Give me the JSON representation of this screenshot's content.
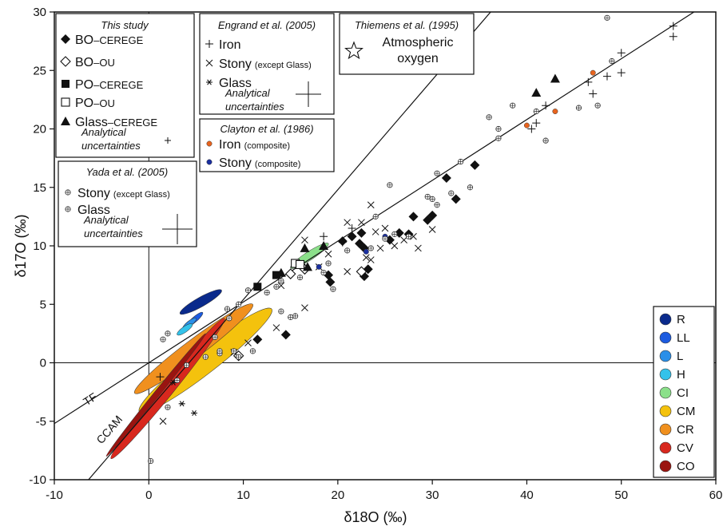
{
  "chart_data": {
    "type": "scatter",
    "xlabel": "δ18O (‰)",
    "ylabel": "δ17O (‰)",
    "xlim": [
      -10,
      60
    ],
    "ylim": [
      -10,
      30
    ],
    "xticks": [
      -10,
      0,
      10,
      20,
      30,
      40,
      50,
      60
    ],
    "yticks": [
      -10,
      -5,
      0,
      5,
      10,
      15,
      20,
      25,
      30
    ],
    "grid": false,
    "reference_lines": [
      {
        "name": "TF",
        "slope": 0.52,
        "intercept": 0,
        "label": "TF",
        "label_at": [
          -6.6,
          -3.7
        ]
      },
      {
        "name": "CCAM",
        "slope": 0.94,
        "intercept": -4,
        "label": "CCAM",
        "label_at": [
          -5.0,
          -7.0
        ]
      }
    ],
    "legend_boxes": [
      {
        "title": "This study",
        "entries": [
          {
            "marker": "filled-diamond",
            "label": "BO",
            "suffix": "–CEREGE"
          },
          {
            "marker": "open-diamond",
            "label": "BO",
            "suffix": "–OU"
          },
          {
            "marker": "filled-square",
            "label": "PO",
            "suffix": "–CEREGE"
          },
          {
            "marker": "open-square",
            "label": "PO",
            "suffix": "–OU"
          },
          {
            "marker": "filled-triangle",
            "label": "Glass",
            "suffix": "–CEREGE"
          }
        ],
        "uncertainty_label": [
          "Analytical",
          "uncertainties"
        ]
      },
      {
        "title": "Engrand et al. (2005)",
        "entries": [
          {
            "marker": "plus",
            "label": "Iron",
            "suffix": ""
          },
          {
            "marker": "cross",
            "label": "Stony",
            "suffix": "(except Glass)"
          },
          {
            "marker": "asterisk",
            "label": "Glass",
            "suffix": ""
          }
        ],
        "uncertainty_label": [
          "Analytical",
          "uncertainties"
        ]
      },
      {
        "title": "Thiemens et al. (1995)",
        "entries": [
          {
            "marker": "open-star",
            "label": "Atmospheric",
            "label2": "oxygen"
          }
        ]
      },
      {
        "title": "Clayton et al. (1986)",
        "entries": [
          {
            "marker": "orange-dot",
            "label": "Iron",
            "suffix": "(composite)"
          },
          {
            "marker": "blue-dot",
            "label": "Stony",
            "suffix": "(composite)"
          }
        ]
      },
      {
        "title": "Yada et al. (2005)",
        "entries": [
          {
            "marker": "circle-plus",
            "label": "Stony",
            "suffix": "(except Glass)"
          },
          {
            "marker": "circle-plus",
            "label": "Glass",
            "suffix": ""
          }
        ],
        "uncertainty_label": [
          "Analytical",
          "uncertainties"
        ]
      }
    ],
    "chondrite_legend": [
      {
        "label": "R",
        "color": "#0a2a8c"
      },
      {
        "label": "LL",
        "color": "#1c5be0"
      },
      {
        "label": "L",
        "color": "#2a8fe8"
      },
      {
        "label": "H",
        "color": "#33c2ea"
      },
      {
        "label": "CI",
        "color": "#8be08a"
      },
      {
        "label": "CM",
        "color": "#f4c20d"
      },
      {
        "label": "CR",
        "color": "#f0901e"
      },
      {
        "label": "CV",
        "color": "#d8281e"
      },
      {
        "label": "CO",
        "color": "#9a1410"
      }
    ],
    "ellipses": [
      {
        "name": "CM",
        "color": "#f4c20d",
        "x1": -1.0,
        "y1": -4.2,
        "x2": 13.0,
        "y2": 4.6,
        "w": 2.6
      },
      {
        "name": "CR",
        "color": "#f0901e",
        "x1": -1.5,
        "y1": -2.6,
        "x2": 11.0,
        "y2": 5.0,
        "w": 1.9
      },
      {
        "name": "CV",
        "color": "#d8281e",
        "x1": -4.0,
        "y1": -8.2,
        "x2": 8.0,
        "y2": 3.8,
        "w": 1.4
      },
      {
        "name": "CO",
        "color": "#9a1410",
        "x1": -4.5,
        "y1": -8.0,
        "x2": 6.0,
        "y2": 2.5,
        "w": 0.6
      },
      {
        "name": "R",
        "color": "#0a2a8c",
        "x1": 3.3,
        "y1": 4.2,
        "x2": 7.7,
        "y2": 6.2,
        "w": 1.0
      },
      {
        "name": "LL",
        "color": "#1c5be0",
        "x1": 4.0,
        "y1": 3.1,
        "x2": 5.7,
        "y2": 4.3,
        "w": 0.55
      },
      {
        "name": "L",
        "color": "#2a8fe8",
        "x1": 3.6,
        "y1": 2.9,
        "x2": 5.0,
        "y2": 3.8,
        "w": 0.55
      },
      {
        "name": "H",
        "color": "#33c2ea",
        "x1": 3.0,
        "y1": 2.4,
        "x2": 4.6,
        "y2": 3.3,
        "w": 0.6
      },
      {
        "name": "CI",
        "color": "#8be08a",
        "x1": 15.0,
        "y1": 8.1,
        "x2": 19.0,
        "y2": 10.2,
        "w": 0.9
      }
    ],
    "series": [
      {
        "name": "BO-CEREGE",
        "marker": "filled-diamond",
        "points": [
          [
            32.5,
            14.0
          ],
          [
            34.5,
            16.9
          ],
          [
            31.5,
            15.8
          ],
          [
            30.0,
            12.6
          ],
          [
            29.5,
            12.2
          ],
          [
            28.0,
            12.5
          ],
          [
            27.5,
            11.0
          ],
          [
            26.5,
            11.1
          ],
          [
            25.5,
            10.5
          ],
          [
            22.5,
            11.1
          ],
          [
            22.3,
            10.2
          ],
          [
            21.5,
            10.8
          ],
          [
            20.5,
            10.4
          ],
          [
            22.8,
            9.8
          ],
          [
            23.2,
            8.0
          ],
          [
            22.8,
            7.4
          ],
          [
            19.2,
            6.9
          ],
          [
            19.0,
            7.5
          ],
          [
            14.5,
            2.4
          ],
          [
            11.5,
            2.0
          ]
        ]
      },
      {
        "name": "BO-OU",
        "marker": "open-diamond",
        "points": [
          [
            16.5,
            8.0
          ],
          [
            22.5,
            7.8
          ],
          [
            9.5,
            0.6
          ],
          [
            15.0,
            7.6
          ]
        ]
      },
      {
        "name": "PO-CEREGE",
        "marker": "filled-square",
        "points": [
          [
            11.5,
            6.5
          ],
          [
            13.5,
            7.5
          ]
        ]
      },
      {
        "name": "PO-OU",
        "marker": "open-square",
        "points": [
          [
            15.5,
            8.5
          ],
          [
            16.0,
            8.4
          ]
        ]
      },
      {
        "name": "Glass-CEREGE",
        "marker": "filled-triangle",
        "points": [
          [
            43.0,
            24.3
          ],
          [
            41.0,
            23.1
          ],
          [
            18.5,
            10.0
          ],
          [
            16.5,
            9.8
          ],
          [
            14.0,
            7.7
          ],
          [
            16.8,
            8.2
          ]
        ]
      },
      {
        "name": "Engrand Iron",
        "marker": "plus",
        "points": [
          [
            55.5,
            28.8
          ],
          [
            55.5,
            27.9
          ],
          [
            50.0,
            26.5
          ],
          [
            50.0,
            24.8
          ],
          [
            48.5,
            24.5
          ],
          [
            46.5,
            24.0
          ],
          [
            47.0,
            23.0
          ],
          [
            42.0,
            22.0
          ],
          [
            41.0,
            20.5
          ],
          [
            40.5,
            20.0
          ],
          [
            18.5,
            10.8
          ],
          [
            20.5,
            10.3
          ],
          [
            21.5,
            11.5
          ],
          [
            1.2,
            -1.2
          ]
        ]
      },
      {
        "name": "Engrand Stony",
        "marker": "cross",
        "points": [
          [
            23.5,
            13.5
          ],
          [
            21.0,
            12.0
          ],
          [
            22.5,
            12.0
          ],
          [
            25.0,
            11.5
          ],
          [
            24.0,
            11.2
          ],
          [
            28.0,
            10.8
          ],
          [
            30.0,
            11.4
          ],
          [
            27.0,
            10.5
          ],
          [
            26.0,
            10.0
          ],
          [
            28.5,
            9.8
          ],
          [
            19.0,
            9.3
          ],
          [
            16.5,
            10.5
          ],
          [
            18.0,
            8.2
          ],
          [
            23.0,
            9.0
          ],
          [
            23.5,
            8.8
          ],
          [
            24.5,
            9.8
          ],
          [
            21.0,
            7.8
          ],
          [
            14.0,
            6.6
          ],
          [
            16.5,
            4.7
          ],
          [
            13.5,
            3.0
          ],
          [
            10.5,
            1.7
          ],
          [
            9.0,
            0.9
          ],
          [
            1.5,
            -5.0
          ]
        ]
      },
      {
        "name": "Engrand Glass",
        "marker": "asterisk",
        "points": [
          [
            4.8,
            -4.3
          ],
          [
            3.5,
            -3.5
          ],
          [
            2.6,
            -1.7
          ]
        ]
      },
      {
        "name": "Clayton Iron",
        "marker": "orange-dot",
        "points": [
          [
            47.0,
            24.8
          ],
          [
            43.0,
            21.5
          ],
          [
            40.0,
            20.3
          ]
        ]
      },
      {
        "name": "Clayton Stony",
        "marker": "blue-dot",
        "points": [
          [
            18.0,
            8.2
          ],
          [
            23.0,
            9.5
          ],
          [
            25.0,
            10.8
          ]
        ]
      },
      {
        "name": "Yada Stony",
        "marker": "circle-plus",
        "points": [
          [
            48.5,
            29.5
          ],
          [
            49.0,
            25.8
          ],
          [
            47.5,
            22.0
          ],
          [
            45.5,
            21.8
          ],
          [
            42.0,
            19.0
          ],
          [
            41.0,
            21.5
          ],
          [
            38.5,
            22.0
          ],
          [
            37.0,
            20.0
          ],
          [
            37.0,
            19.2
          ],
          [
            36.0,
            21.0
          ],
          [
            33.0,
            17.2
          ],
          [
            30.5,
            16.2
          ],
          [
            34.0,
            15.0
          ],
          [
            32.0,
            14.5
          ],
          [
            30.0,
            14.0
          ],
          [
            30.5,
            13.5
          ],
          [
            29.5,
            14.2
          ],
          [
            25.5,
            15.2
          ],
          [
            24.0,
            12.5
          ],
          [
            26.0,
            11.0
          ],
          [
            27.5,
            10.8
          ],
          [
            25.0,
            10.6
          ],
          [
            23.5,
            9.8
          ],
          [
            21.0,
            9.6
          ],
          [
            19.0,
            8.5
          ],
          [
            18.5,
            7.7
          ],
          [
            16.0,
            7.3
          ],
          [
            14.0,
            7.0
          ],
          [
            13.5,
            6.5
          ],
          [
            12.5,
            6.0
          ],
          [
            10.5,
            6.2
          ],
          [
            9.5,
            5.0
          ],
          [
            8.5,
            3.8
          ],
          [
            9.0,
            1.0
          ],
          [
            9.5,
            0.5
          ],
          [
            11.0,
            1.0
          ],
          [
            7.5,
            0.8
          ],
          [
            6.0,
            0.5
          ],
          [
            4.0,
            -0.2
          ],
          [
            3.0,
            -1.5
          ],
          [
            2.0,
            -3.8
          ],
          [
            0.2,
            -8.4
          ],
          [
            1.5,
            2.0
          ],
          [
            2.0,
            2.5
          ],
          [
            7.0,
            2.2
          ],
          [
            19.5,
            6.3
          ],
          [
            14.0,
            4.4
          ],
          [
            15.5,
            4.0
          ],
          [
            15.0,
            3.9
          ],
          [
            8.3,
            4.6
          ],
          [
            7.5,
            1.0
          ]
        ]
      }
    ],
    "uncertainty_crosses": [
      {
        "box": 0,
        "x": 210,
        "y": 176,
        "half": 4
      },
      {
        "box": 1,
        "x": 386,
        "y": 118,
        "half": 16
      },
      {
        "box": 4,
        "x": 222,
        "y": 287,
        "half": 19
      }
    ]
  }
}
